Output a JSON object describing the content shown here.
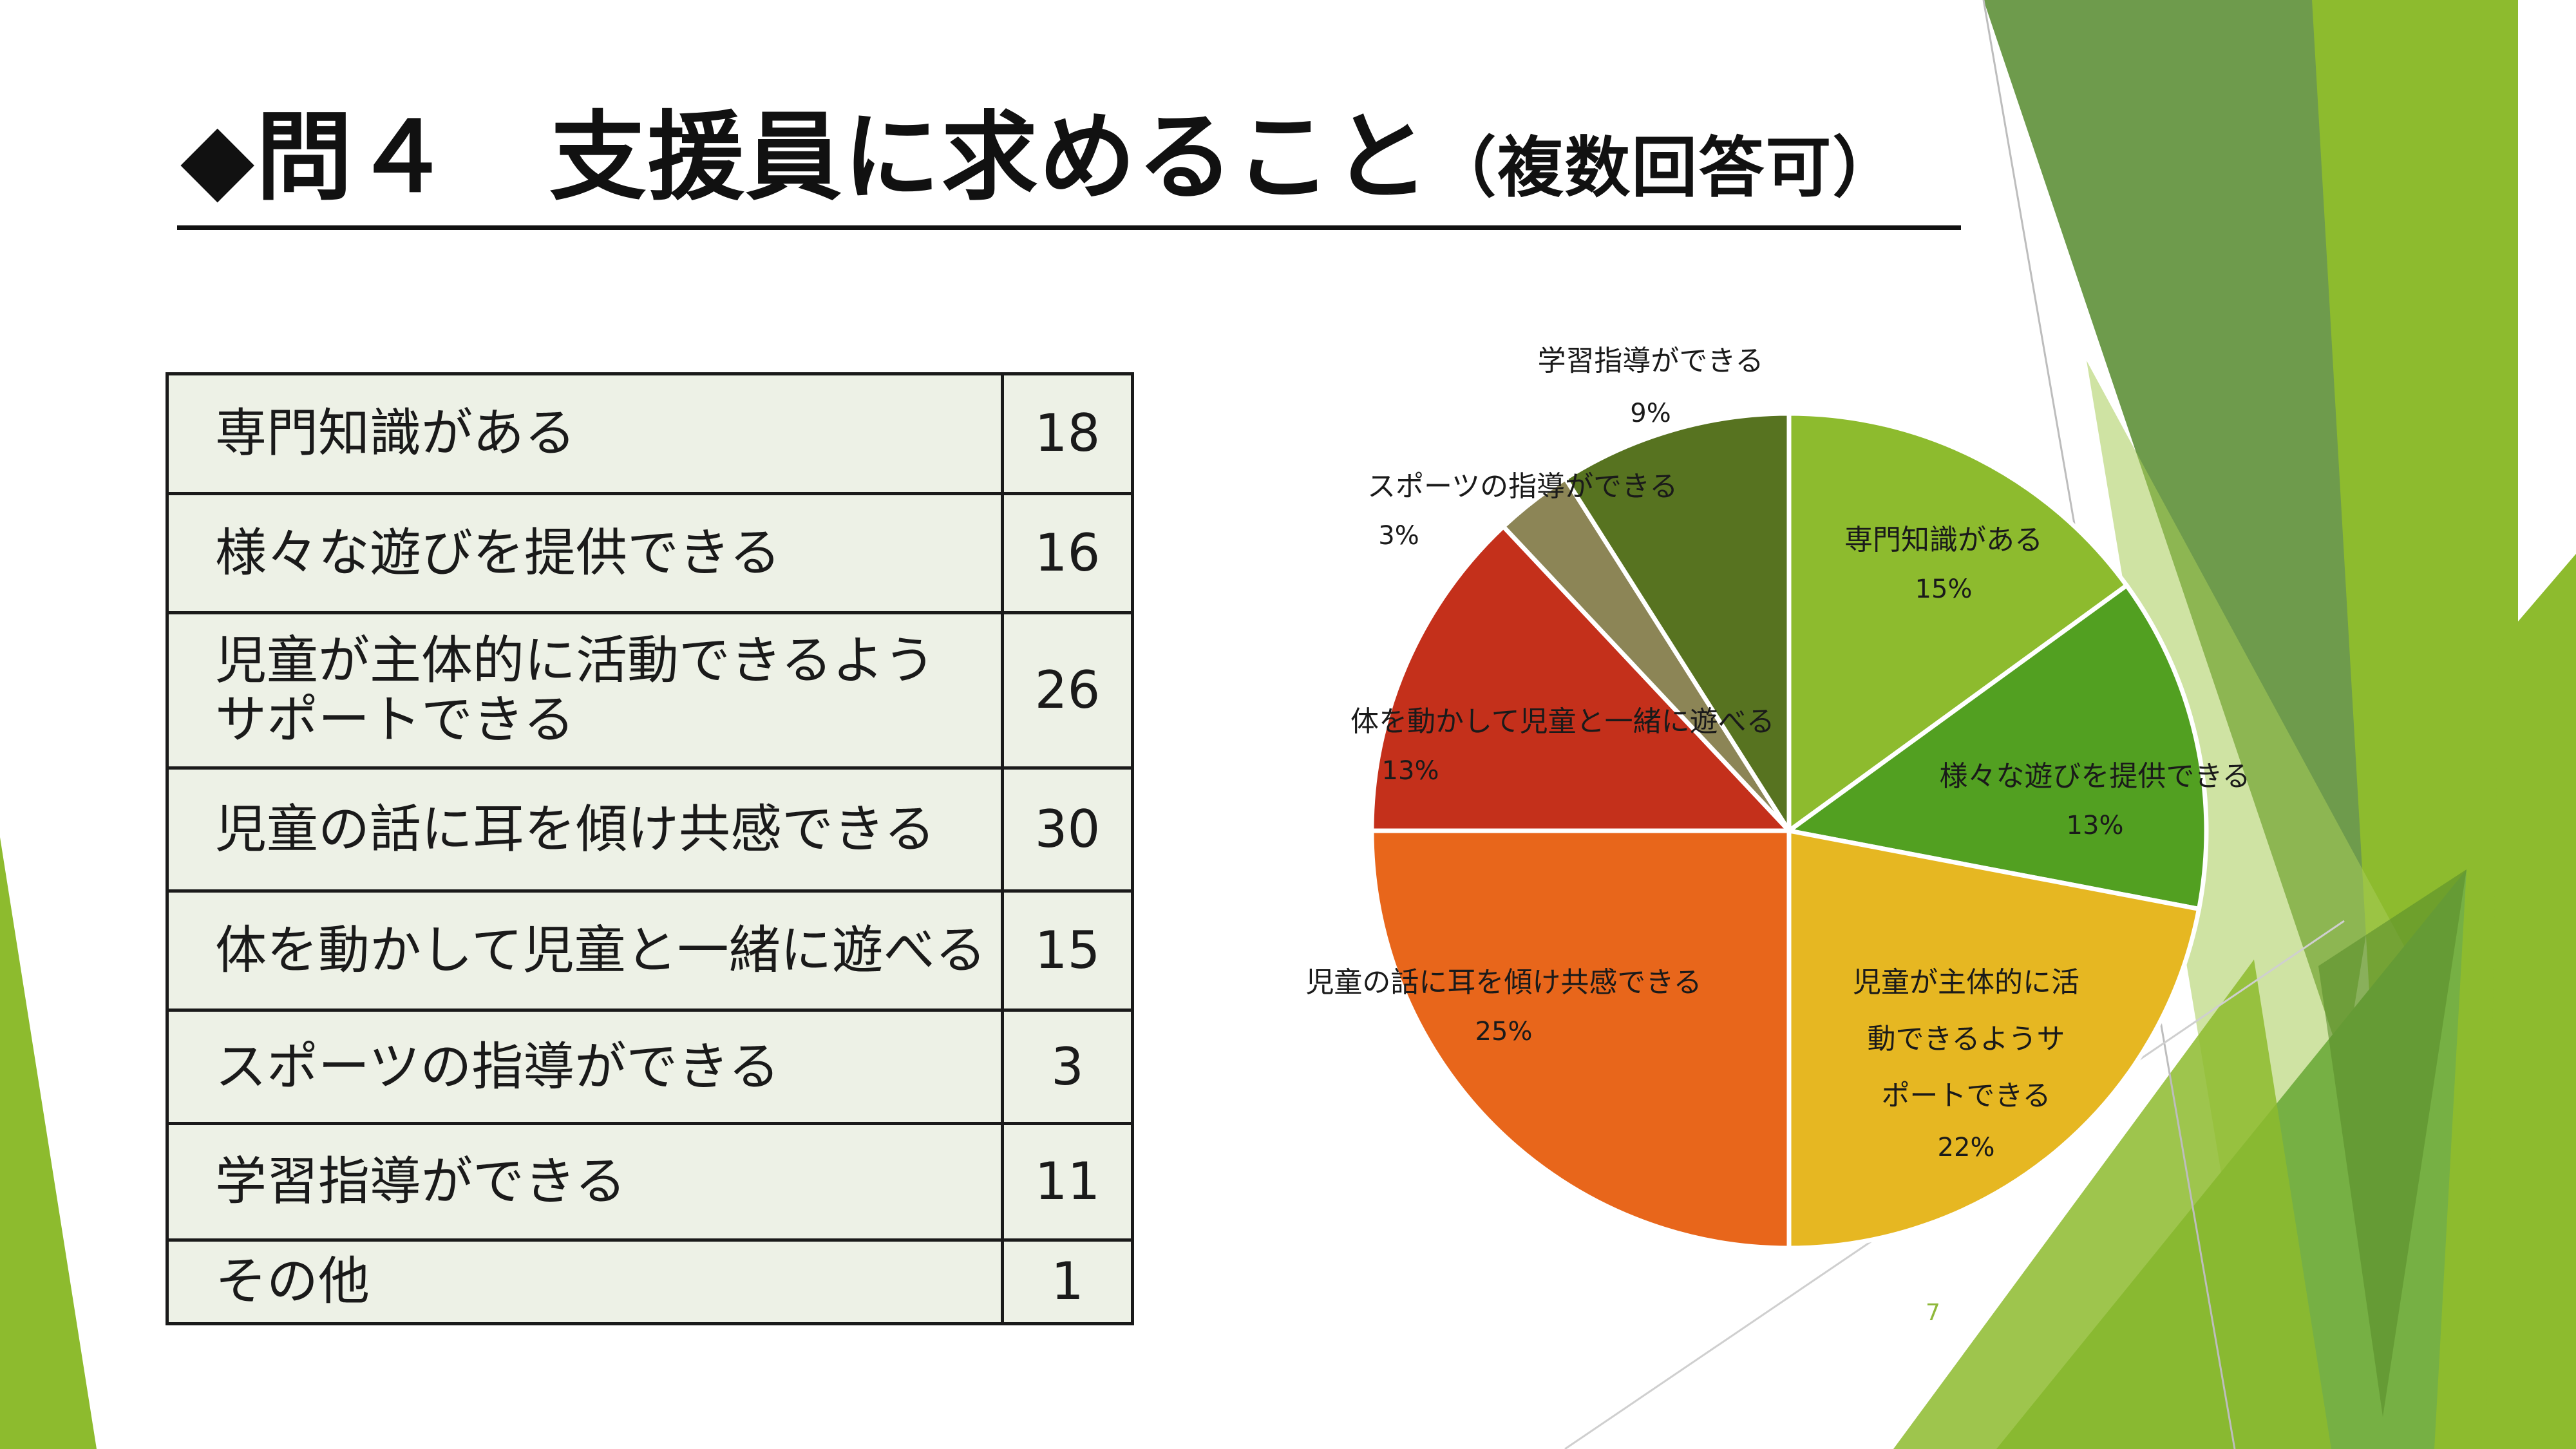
{
  "slide": {
    "title_main": "◆問４　支援員に求めること",
    "title_sub": "（複数回答可）",
    "page_number": "7"
  },
  "table": {
    "rows": [
      {
        "label": "専門知識がある",
        "count": "18"
      },
      {
        "label": "様々な遊びを提供できる",
        "count": "16"
      },
      {
        "label": "児童が主体的に活動できるよう\nサポートできる",
        "count": "26"
      },
      {
        "label": "児童の話に耳を傾け共感できる",
        "count": "30"
      },
      {
        "label": "体を動かして児童と一緒に遊べる",
        "count": "15"
      },
      {
        "label": "スポーツの指導ができる",
        "count": "3"
      },
      {
        "label": "学習指導ができる",
        "count": "11"
      },
      {
        "label": "その他",
        "count": "1"
      }
    ]
  },
  "chart_data": {
    "type": "pie",
    "slices": [
      {
        "label": "専門知識がある",
        "value": 15,
        "percent_label": "15%",
        "color": "#8dbb2e"
      },
      {
        "label": "様々な遊びを提供できる",
        "value": 13,
        "percent_label": "13%",
        "color": "#52a021"
      },
      {
        "label": "児童が主体的に活動できるようサポートできる",
        "value": 22,
        "percent_label": "22%",
        "color": "#e6b722"
      },
      {
        "label": "児童の話に耳を傾け共感できる",
        "value": 25,
        "percent_label": "25%",
        "color": "#e8661b"
      },
      {
        "label": "体を動かして児童と一緒に遊べる",
        "value": 13,
        "percent_label": "13%",
        "color": "#c4301b"
      },
      {
        "label": "スポーツの指導ができる",
        "value": 3,
        "percent_label": "3%",
        "color": "#8c8556"
      },
      {
        "label": "学習指導ができる",
        "value": 9,
        "percent_label": "9%",
        "color": "#577320"
      }
    ],
    "start_angle_deg": 0,
    "direction": "clockwise",
    "legend": "none"
  },
  "theme": {
    "accent_green": "#8dbb2e",
    "dark_green": "#5c8f32"
  }
}
